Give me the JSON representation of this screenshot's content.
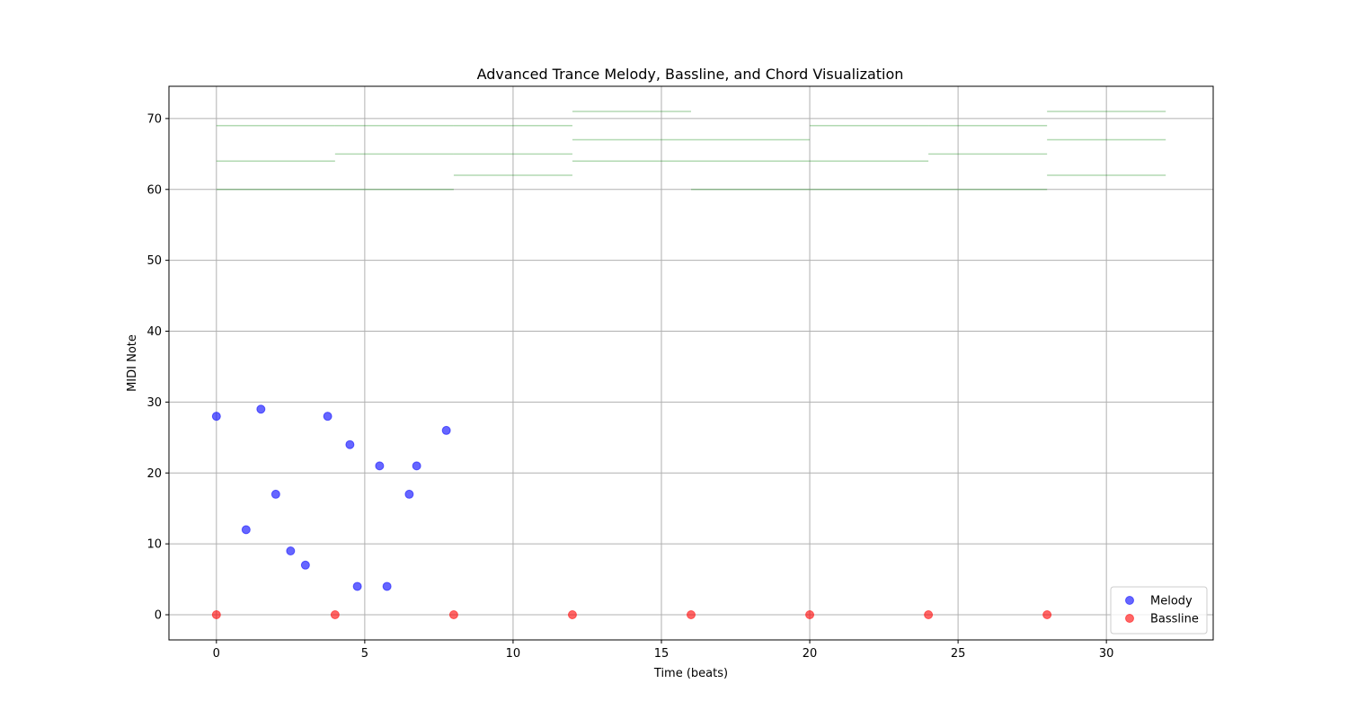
{
  "chart_data": {
    "type": "scatter",
    "title": "Advanced Trance Melody, Bassline, and Chord Visualization",
    "xlabel": "Time (beats)",
    "ylabel": "MIDI Note",
    "xlim": [
      -1.6,
      33.6
    ],
    "ylim": [
      -3.55,
      74.55
    ],
    "xticks": [
      0,
      5,
      10,
      15,
      20,
      25,
      30
    ],
    "yticks": [
      0,
      10,
      20,
      30,
      40,
      50,
      60,
      70
    ],
    "grid": true,
    "legend_position": "lower-right",
    "series": [
      {
        "name": "Melody",
        "type": "scatter",
        "color": "#0000ff",
        "alpha": 0.6,
        "points": [
          [
            0,
            28
          ],
          [
            1,
            12
          ],
          [
            1.5,
            29
          ],
          [
            2,
            17
          ],
          [
            2.5,
            9
          ],
          [
            3,
            7
          ],
          [
            3.75,
            28
          ],
          [
            4.5,
            24
          ],
          [
            4.75,
            4
          ],
          [
            5.5,
            21
          ],
          [
            5.75,
            4
          ],
          [
            6.5,
            17
          ],
          [
            6.75,
            21
          ],
          [
            7.75,
            26
          ]
        ]
      },
      {
        "name": "Bassline",
        "type": "scatter",
        "color": "#ff0000",
        "alpha": 0.6,
        "points": [
          [
            0,
            0
          ],
          [
            4,
            0
          ],
          [
            8,
            0
          ],
          [
            12,
            0
          ],
          [
            16,
            0
          ],
          [
            20,
            0
          ],
          [
            24,
            0
          ],
          [
            28,
            0
          ]
        ]
      },
      {
        "type": "segments",
        "color": "#008000",
        "alpha": 0.3,
        "segments": [
          [
            0,
            4,
            60
          ],
          [
            0,
            4,
            64
          ],
          [
            0,
            4,
            69
          ],
          [
            4,
            8,
            60
          ],
          [
            4,
            8,
            65
          ],
          [
            4,
            8,
            69
          ],
          [
            8,
            12,
            62
          ],
          [
            8,
            12,
            65
          ],
          [
            8,
            12,
            69
          ],
          [
            12,
            16,
            64
          ],
          [
            12,
            16,
            67
          ],
          [
            12,
            16,
            71
          ],
          [
            16,
            20,
            60
          ],
          [
            16,
            20,
            64
          ],
          [
            16,
            20,
            67
          ],
          [
            20,
            24,
            60
          ],
          [
            20,
            24,
            64
          ],
          [
            20,
            24,
            69
          ],
          [
            24,
            28,
            60
          ],
          [
            24,
            28,
            65
          ],
          [
            24,
            28,
            69
          ],
          [
            28,
            32,
            62
          ],
          [
            28,
            32,
            67
          ],
          [
            28,
            32,
            71
          ]
        ]
      }
    ]
  }
}
